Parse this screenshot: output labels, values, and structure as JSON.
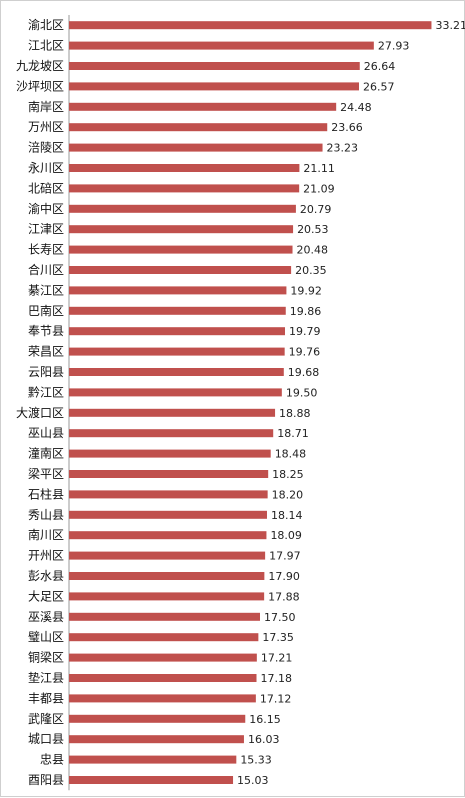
{
  "chart_data": {
    "type": "bar",
    "orientation": "horizontal",
    "title": "",
    "xlabel": "",
    "ylabel": "",
    "grid": false,
    "legend": "none",
    "bar_color": "#c0504d",
    "xlim": [
      0,
      35
    ],
    "categories": [
      "渝北区",
      "江北区",
      "九龙坡区",
      "沙坪坝区",
      "南岸区",
      "万州区",
      "涪陵区",
      "永川区",
      "北碚区",
      "渝中区",
      "江津区",
      "长寿区",
      "合川区",
      "綦江区",
      "巴南区",
      "奉节县",
      "荣昌区",
      "云阳县",
      "黔江区",
      "大渡口区",
      "巫山县",
      "潼南区",
      "梁平区",
      "石柱县",
      "秀山县",
      "南川区",
      "开州区",
      "彭水县",
      "大足区",
      "巫溪县",
      "璧山区",
      "铜梁区",
      "垫江县",
      "丰都县",
      "武隆区",
      "城口县",
      "忠县",
      "酉阳县"
    ],
    "values": [
      33.21,
      27.93,
      26.64,
      26.57,
      24.48,
      23.66,
      23.23,
      21.11,
      21.09,
      20.79,
      20.53,
      20.48,
      20.35,
      19.92,
      19.86,
      19.79,
      19.76,
      19.68,
      19.5,
      18.88,
      18.71,
      18.48,
      18.25,
      18.2,
      18.14,
      18.09,
      17.97,
      17.9,
      17.88,
      17.5,
      17.35,
      17.21,
      17.18,
      17.12,
      16.15,
      16.03,
      15.33,
      15.03
    ],
    "value_labels": [
      "33.21",
      "27.93",
      "26.64",
      "26.57",
      "24.48",
      "23.66",
      "23.23",
      "21.11",
      "21.09",
      "20.79",
      "20.53",
      "20.48",
      "20.35",
      "19.92",
      "19.86",
      "19.79",
      "19.76",
      "19.68",
      "19.50",
      "18.88",
      "18.71",
      "18.48",
      "18.25",
      "18.20",
      "18.14",
      "18.09",
      "17.97",
      "17.90",
      "17.88",
      "17.50",
      "17.35",
      "17.21",
      "17.18",
      "17.12",
      "16.15",
      "16.03",
      "15.33",
      "15.03"
    ]
  }
}
